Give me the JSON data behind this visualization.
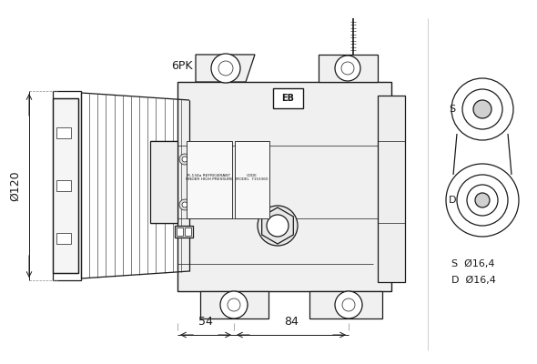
{
  "bg_color": "#ffffff",
  "lc": "#1a1a1a",
  "lc_dim": "#1a1a1a",
  "lw_main": 0.9,
  "lw_thin": 0.5,
  "lw_dim": 0.7,
  "label_6pk": "6PK",
  "label_phi120": "Ø120",
  "label_54": "54",
  "label_84": "84",
  "label_S": "S",
  "label_D": "D",
  "label_S_dim": "S  Ø16,4",
  "label_D_dim": "D  Ø16,4",
  "label_EB": "EB",
  "label_ref": "R-134a REFRIGERANT\nUNDER HIGH PRESSURE",
  "label_code": "CODE\nMODEL  7153360"
}
